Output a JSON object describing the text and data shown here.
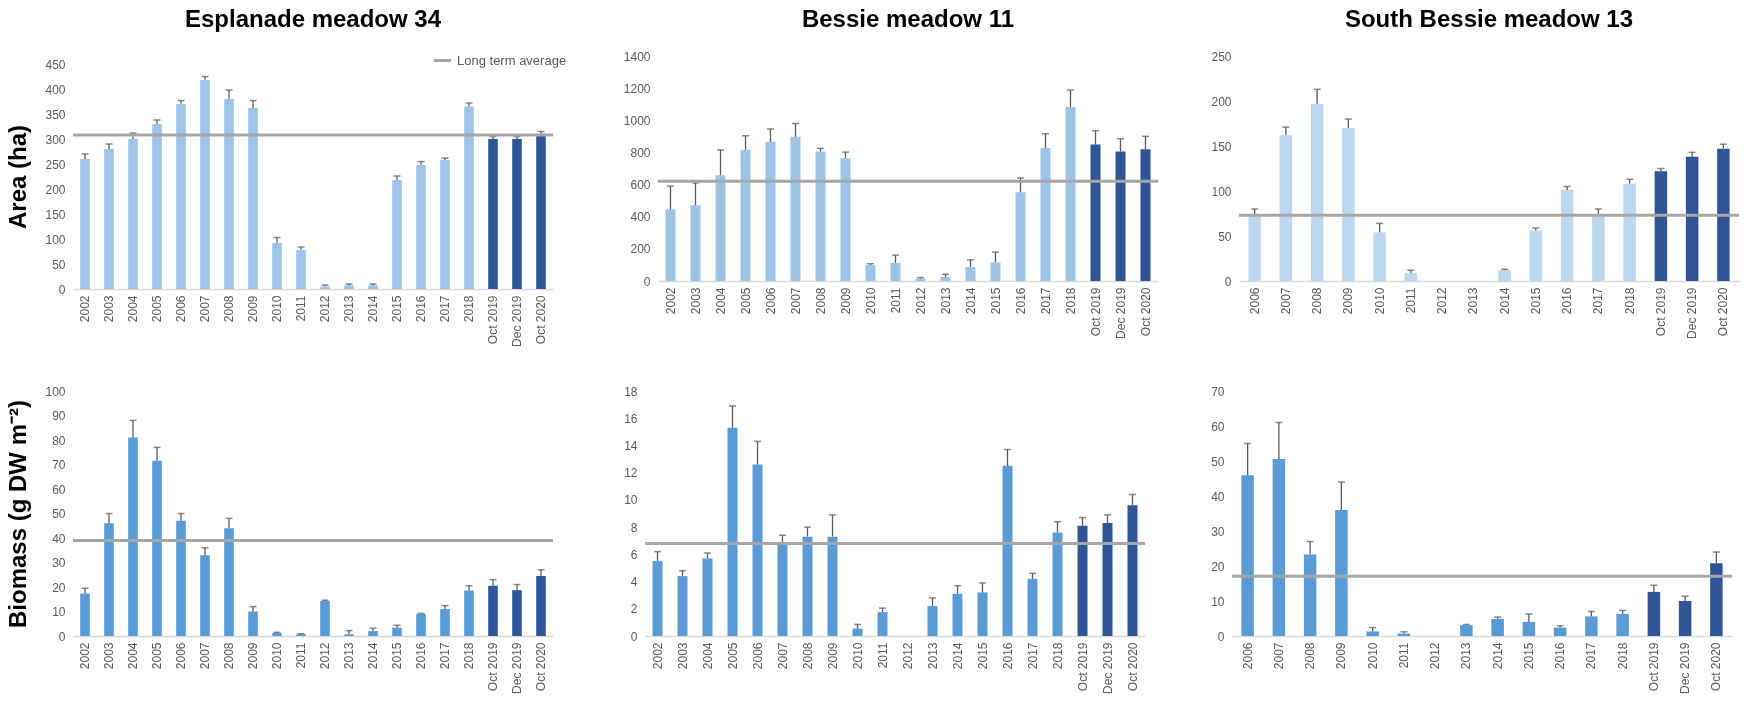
{
  "chart_data": [
    {
      "type": "bar",
      "title": "Esplanade meadow 34",
      "ylabel": "Area (ha)",
      "categories": [
        "2002",
        "2003",
        "2004",
        "2005",
        "2006",
        "2007",
        "2008",
        "2009",
        "2010",
        "2011",
        "2012",
        "2013",
        "2014",
        "2015",
        "2016",
        "2017",
        "2018",
        "Oct 2019",
        "Dec 2019",
        "Oct 2020"
      ],
      "values": [
        260,
        280,
        300,
        330,
        370,
        418,
        380,
        362,
        92,
        78,
        5,
        7,
        7,
        218,
        248,
        258,
        365,
        300,
        300,
        310
      ],
      "errors": [
        [
          260,
          270
        ],
        [
          280,
          290
        ],
        [
          300,
          312
        ],
        [
          330,
          338
        ],
        [
          370,
          377
        ],
        [
          418,
          425
        ],
        [
          380,
          398
        ],
        [
          362,
          377
        ],
        [
          92,
          103
        ],
        [
          78,
          84
        ],
        [
          5,
          8
        ],
        [
          7,
          10
        ],
        [
          7,
          10
        ],
        [
          218,
          226
        ],
        [
          248,
          255
        ],
        [
          258,
          262
        ],
        [
          365,
          372
        ],
        [
          300,
          305
        ],
        [
          300,
          305
        ],
        [
          310,
          315
        ]
      ],
      "colors": [
        "#9dc3e6",
        "#9dc3e6",
        "#9dc3e6",
        "#9dc3e6",
        "#9dc3e6",
        "#9dc3e6",
        "#9dc3e6",
        "#9dc3e6",
        "#9dc3e6",
        "#9dc3e6",
        "#9dc3e6",
        "#9dc3e6",
        "#9dc3e6",
        "#9dc3e6",
        "#9dc3e6",
        "#9dc3e6",
        "#9dc3e6",
        "#2f5597",
        "#2f5597",
        "#2f5597"
      ],
      "ylim": [
        0,
        450
      ],
      "yticks": [
        0,
        50,
        100,
        150,
        200,
        250,
        300,
        350,
        400,
        450
      ],
      "ref_lines": [
        {
          "axis": "y",
          "value": 308,
          "label": "Long term average",
          "color": "#a6a6a6"
        }
      ],
      "legend": "top right"
    },
    {
      "type": "bar",
      "title": "Bessie meadow 11",
      "categories": [
        "2002",
        "2003",
        "2004",
        "2005",
        "2006",
        "2007",
        "2008",
        "2009",
        "2010",
        "2011",
        "2012",
        "2013",
        "2014",
        "2015",
        "2016",
        "2017",
        "2018",
        "Oct 2019",
        "Dec 2019",
        "Oct 2020"
      ],
      "values": [
        445,
        471,
        658,
        817,
        866,
        897,
        806,
        764,
        100,
        112,
        15,
        25,
        87,
        115,
        552,
        827,
        1082,
        849,
        806,
        820
      ],
      "errors": [
        [
          445,
          590
        ],
        [
          471,
          610
        ],
        [
          658,
          815
        ],
        [
          817,
          904
        ],
        [
          866,
          946
        ],
        [
          897,
          980
        ],
        [
          806,
          825
        ],
        [
          764,
          802
        ],
        [
          100,
          108
        ],
        [
          112,
          161
        ],
        [
          15,
          21
        ],
        [
          25,
          42
        ],
        [
          87,
          132
        ],
        [
          115,
          180
        ],
        [
          552,
          641
        ],
        [
          827,
          916
        ],
        [
          1082,
          1188
        ],
        [
          849,
          935
        ],
        [
          806,
          885
        ],
        [
          820,
          900
        ]
      ],
      "colors": [
        "#9dc3e6",
        "#9dc3e6",
        "#9dc3e6",
        "#9dc3e6",
        "#9dc3e6",
        "#9dc3e6",
        "#9dc3e6",
        "#9dc3e6",
        "#9dc3e6",
        "#9dc3e6",
        "#9dc3e6",
        "#9dc3e6",
        "#9dc3e6",
        "#9dc3e6",
        "#9dc3e6",
        "#9dc3e6",
        "#9dc3e6",
        "#2f5597",
        "#2f5597",
        "#2f5597"
      ],
      "ylim": [
        0,
        1400
      ],
      "yticks": [
        0,
        200,
        400,
        600,
        800,
        1000,
        1200,
        1400
      ],
      "ref_lines": [
        {
          "axis": "y",
          "value": 620,
          "color": "#a6a6a6"
        }
      ]
    },
    {
      "type": "bar",
      "title": "South Bessie meadow 13",
      "categories": [
        "2006",
        "2007",
        "2008",
        "2009",
        "2010",
        "2011",
        "2012",
        "2013",
        "2014",
        "2015",
        "2016",
        "2017",
        "2018",
        "Oct 2019",
        "Dec 2019",
        "Oct 2020"
      ],
      "values": [
        73,
        162,
        197,
        170,
        54,
        9,
        null,
        null,
        12,
        56,
        101,
        73,
        108,
        122,
        138,
        147
      ],
      "errors": [
        [
          73,
          80
        ],
        [
          162,
          171
        ],
        [
          197,
          213
        ],
        [
          170,
          180
        ],
        [
          54,
          64
        ],
        [
          9,
          12
        ],
        null,
        null,
        [
          12,
          13
        ],
        [
          56,
          59
        ],
        [
          101,
          105
        ],
        [
          73,
          80
        ],
        [
          108,
          113
        ],
        [
          122,
          125
        ],
        [
          138,
          143
        ],
        [
          147,
          152
        ]
      ],
      "colors": [
        "#bdd7ee",
        "#bdd7ee",
        "#bdd7ee",
        "#bdd7ee",
        "#bdd7ee",
        "#bdd7ee",
        "#bdd7ee",
        "#bdd7ee",
        "#bdd7ee",
        "#bdd7ee",
        "#bdd7ee",
        "#bdd7ee",
        "#bdd7ee",
        "#2f5597",
        "#2f5597",
        "#2f5597"
      ],
      "ylim": [
        0,
        250
      ],
      "yticks": [
        0,
        50,
        100,
        150,
        200,
        250
      ],
      "ref_lines": [
        {
          "axis": "y",
          "value": 73,
          "color": "#a6a6a6"
        }
      ]
    },
    {
      "type": "bar",
      "ylabel": "Biomass (g DW m⁻²)",
      "categories": [
        "2002",
        "2003",
        "2004",
        "2005",
        "2006",
        "2007",
        "2008",
        "2009",
        "2010",
        "2011",
        "2012",
        "2013",
        "2014",
        "2015",
        "2016",
        "2017",
        "2018",
        "Oct 2019",
        "Dec 2019",
        "Oct 2020"
      ],
      "values": [
        17.3,
        46,
        81,
        71.5,
        47,
        33,
        44,
        10,
        1.2,
        0.7,
        14.3,
        0.7,
        2,
        3.4,
        9,
        11,
        18.6,
        20.5,
        18.7,
        24.5
      ],
      "errors": [
        [
          17.3,
          19.5
        ],
        [
          46,
          50
        ],
        [
          81,
          88
        ],
        [
          71.5,
          77
        ],
        [
          47,
          50
        ],
        [
          33,
          36
        ],
        [
          44,
          48
        ],
        [
          10,
          12
        ],
        [
          1.2,
          1.5
        ],
        [
          0.7,
          0.9
        ],
        [
          14.3,
          14.6
        ],
        [
          0.7,
          2.2
        ],
        [
          2,
          3.2
        ],
        [
          3.4,
          4.4
        ],
        [
          9,
          9.2
        ],
        [
          11,
          12.4
        ],
        [
          18.6,
          20.5
        ],
        [
          20.5,
          23
        ],
        [
          18.7,
          21
        ],
        [
          24.5,
          27
        ]
      ],
      "colors": [
        "#5b9bd5",
        "#5b9bd5",
        "#5b9bd5",
        "#5b9bd5",
        "#5b9bd5",
        "#5b9bd5",
        "#5b9bd5",
        "#5b9bd5",
        "#5b9bd5",
        "#5b9bd5",
        "#5b9bd5",
        "#5b9bd5",
        "#5b9bd5",
        "#5b9bd5",
        "#5b9bd5",
        "#5b9bd5",
        "#5b9bd5",
        "#2f5597",
        "#2f5597",
        "#2f5597"
      ],
      "ylim": [
        0,
        100
      ],
      "yticks": [
        0,
        10,
        20,
        30,
        40,
        50,
        60,
        70,
        80,
        90,
        100
      ],
      "ref_lines": [
        {
          "axis": "y",
          "value": 39,
          "color": "#a6a6a6"
        }
      ]
    },
    {
      "type": "bar",
      "categories": [
        "2002",
        "2003",
        "2004",
        "2005",
        "2006",
        "2007",
        "2008",
        "2009",
        "2010",
        "2011",
        "2012",
        "2013",
        "2014",
        "2015",
        "2016",
        "2017",
        "2018",
        "Oct 2019",
        "Dec 2019",
        "Oct 2020"
      ],
      "values": [
        5.5,
        4.4,
        5.7,
        15.3,
        12.6,
        6.9,
        7.3,
        7.3,
        0.55,
        1.75,
        null,
        2.2,
        3.1,
        3.2,
        12.5,
        4.2,
        7.6,
        8.1,
        8.3,
        9.6
      ],
      "errors": [
        [
          5.5,
          6.2
        ],
        [
          4.4,
          4.8
        ],
        [
          5.7,
          6.1
        ],
        [
          15.3,
          16.9
        ],
        [
          12.6,
          14.3
        ],
        [
          6.9,
          7.4
        ],
        [
          7.3,
          8
        ],
        [
          7.3,
          8.9
        ],
        [
          0.55,
          0.85
        ],
        [
          1.75,
          2.05
        ],
        null,
        [
          2.2,
          2.8
        ],
        [
          3.1,
          3.7
        ],
        [
          3.2,
          3.9
        ],
        [
          12.5,
          13.7
        ],
        [
          4.2,
          4.6
        ],
        [
          7.6,
          8.4
        ],
        [
          8.1,
          8.7
        ],
        [
          8.3,
          8.9
        ],
        [
          9.6,
          10.4
        ]
      ],
      "colors": [
        "#5b9bd5",
        "#5b9bd5",
        "#5b9bd5",
        "#5b9bd5",
        "#5b9bd5",
        "#5b9bd5",
        "#5b9bd5",
        "#5b9bd5",
        "#5b9bd5",
        "#5b9bd5",
        "#5b9bd5",
        "#5b9bd5",
        "#5b9bd5",
        "#5b9bd5",
        "#5b9bd5",
        "#5b9bd5",
        "#5b9bd5",
        "#2f5597",
        "#2f5597",
        "#2f5597"
      ],
      "ylim": [
        0,
        18
      ],
      "yticks": [
        0,
        2,
        4,
        6,
        8,
        10,
        12,
        14,
        16,
        18
      ],
      "ref_lines": [
        {
          "axis": "y",
          "value": 6.8,
          "color": "#a6a6a6"
        }
      ]
    },
    {
      "type": "bar",
      "categories": [
        "2006",
        "2007",
        "2008",
        "2009",
        "2010",
        "2011",
        "2012",
        "2013",
        "2014",
        "2015",
        "2016",
        "2017",
        "2018",
        "Oct 2019",
        "Dec 2019",
        "Oct 2020"
      ],
      "values": [
        45.9,
        50.6,
        23.3,
        36,
        1.3,
        0.7,
        null,
        3.1,
        4.9,
        4,
        2.4,
        5.6,
        6.3,
        12.6,
        10,
        20.8
      ],
      "errors": [
        [
          45.9,
          55
        ],
        [
          50.6,
          61
        ],
        [
          23.3,
          27
        ],
        [
          36,
          44
        ],
        [
          1.3,
          2.4
        ],
        [
          0.7,
          1.2
        ],
        null,
        [
          3.1,
          3.3
        ],
        [
          4.9,
          5.4
        ],
        [
          4,
          6.3
        ],
        [
          2.4,
          2.9
        ],
        [
          5.6,
          7
        ],
        [
          6.3,
          7.3
        ],
        [
          12.6,
          14.5
        ],
        [
          10,
          11.4
        ],
        [
          20.8,
          24
        ]
      ],
      "colors": [
        "#5b9bd5",
        "#5b9bd5",
        "#5b9bd5",
        "#5b9bd5",
        "#5b9bd5",
        "#5b9bd5",
        "#5b9bd5",
        "#5b9bd5",
        "#5b9bd5",
        "#5b9bd5",
        "#5b9bd5",
        "#5b9bd5",
        "#5b9bd5",
        "#2f5597",
        "#2f5597",
        "#2f5597"
      ],
      "ylim": [
        0,
        70
      ],
      "yticks": [
        0,
        10,
        20,
        30,
        40,
        50,
        60,
        70
      ],
      "ref_lines": [
        {
          "axis": "y",
          "value": 17.1,
          "color": "#a6a6a6"
        }
      ]
    }
  ]
}
